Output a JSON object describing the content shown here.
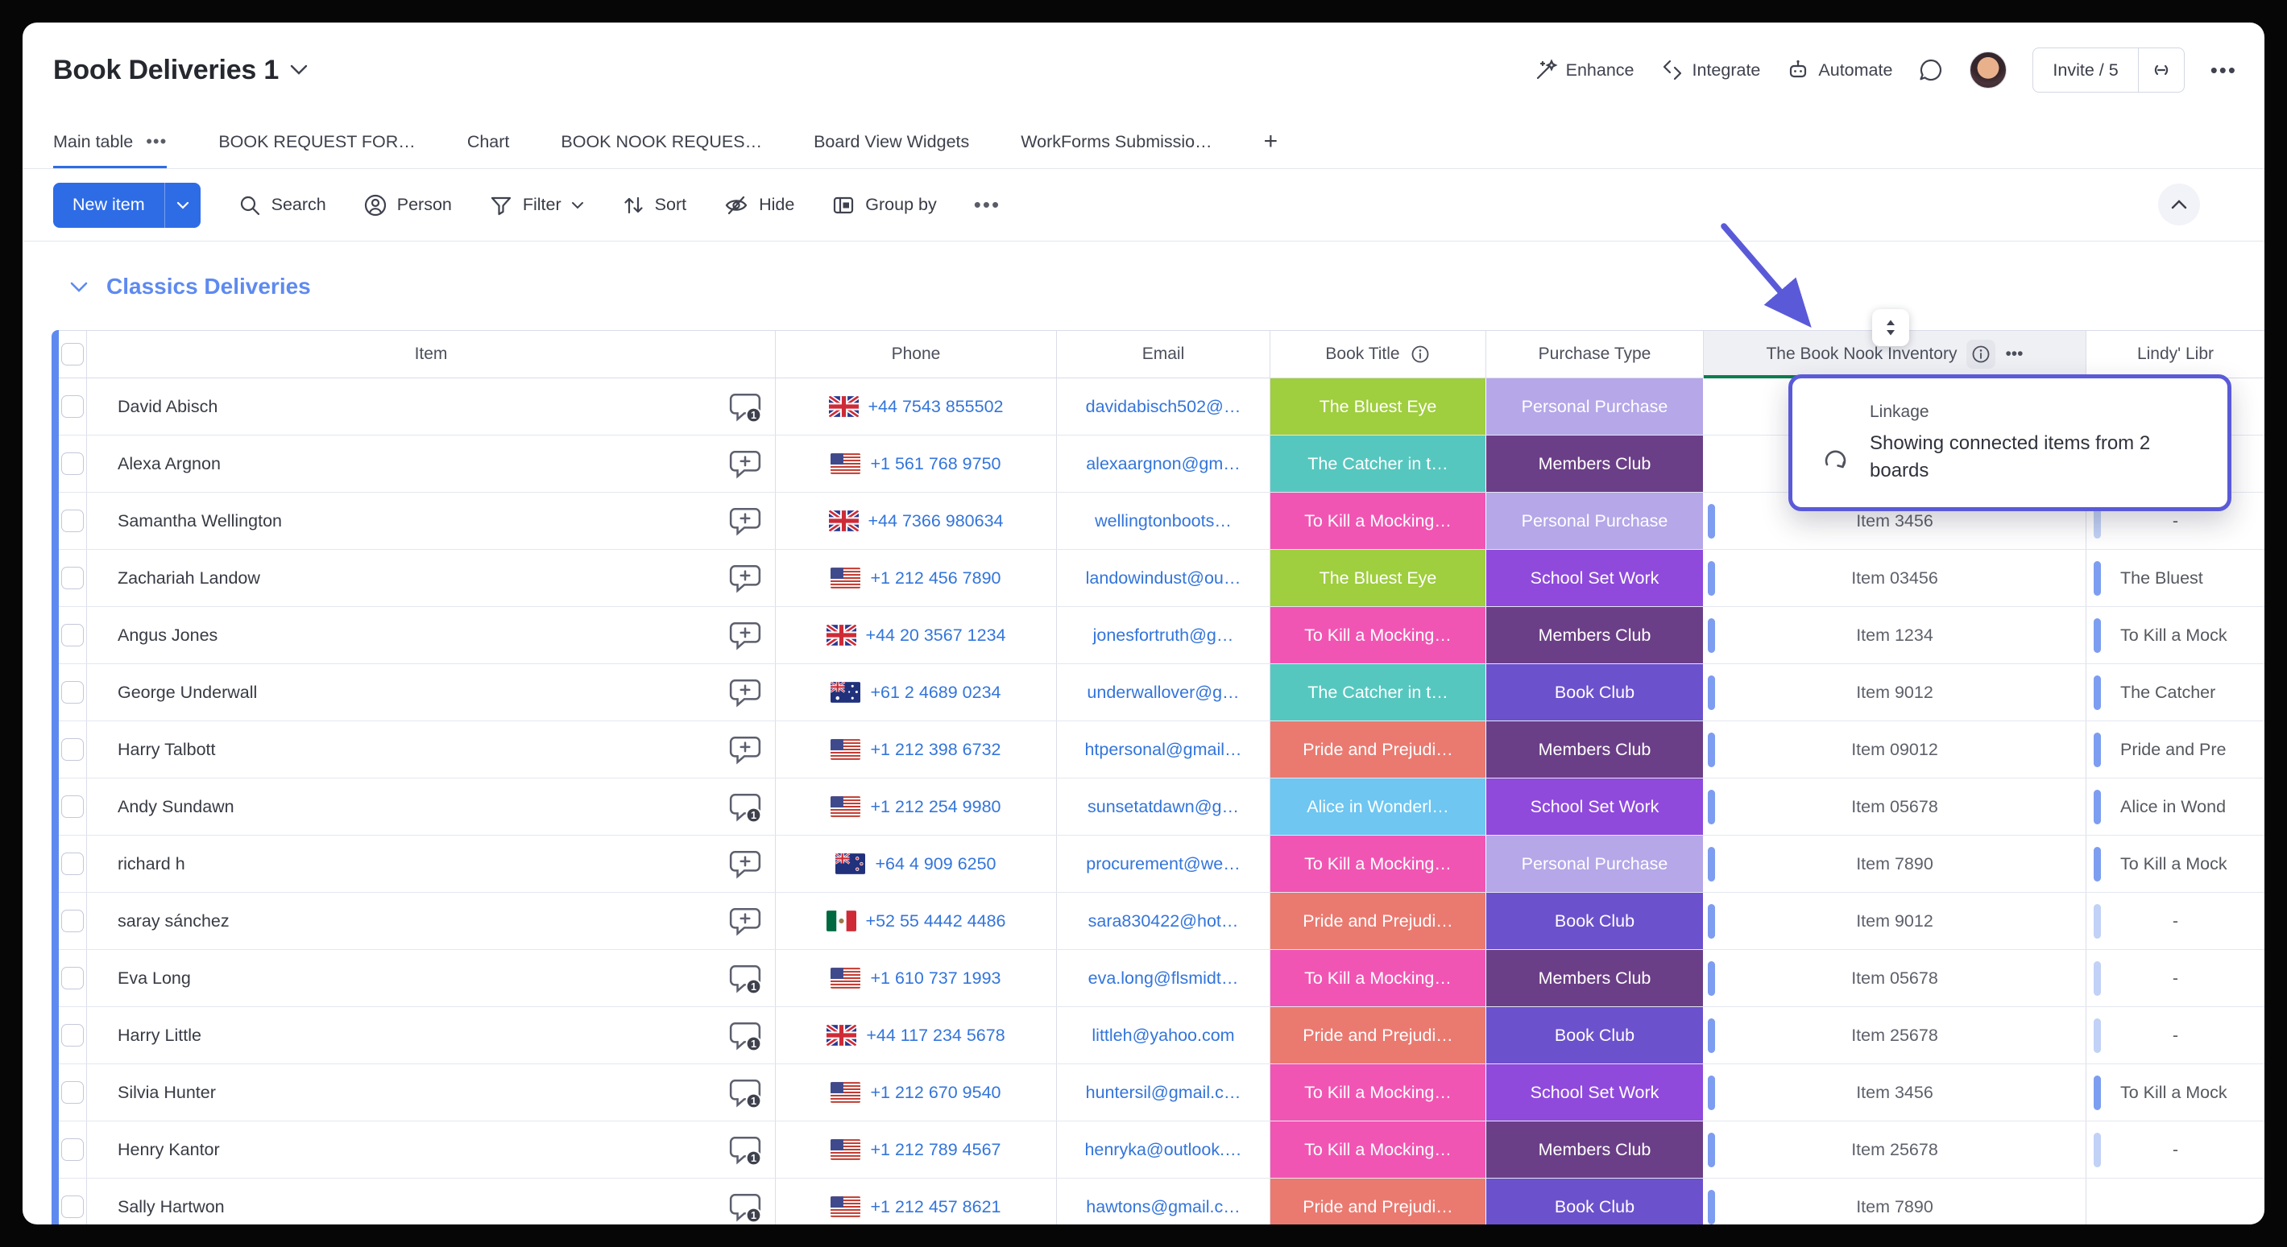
{
  "app": {
    "title": "Book Deliveries 1"
  },
  "top_actions": {
    "enhance": "Enhance",
    "integrate": "Integrate",
    "automate": "Automate",
    "invite": "Invite / 5"
  },
  "tabs": {
    "items": [
      "Main table",
      "BOOK REQUEST FOR…",
      "Chart",
      "BOOK NOOK REQUES…",
      "Board View Widgets",
      "WorkForms Submissio…"
    ],
    "add": "+",
    "active": "Main table"
  },
  "toolbar": {
    "new_item": "New item",
    "search": "Search",
    "person": "Person",
    "filter": "Filter",
    "sort": "Sort",
    "hide": "Hide",
    "group_by": "Group by"
  },
  "group": {
    "title": "Classics Deliveries"
  },
  "table": {
    "columns": {
      "item": "Item",
      "phone": "Phone",
      "email": "Email",
      "book_title": "Book Title",
      "purchase_type": "Purchase Type",
      "inventory": "The Book Nook Inventory",
      "linked": "Lindy' Libr"
    },
    "rows": [
      {
        "name": "David Abisch",
        "chat": "badge",
        "chat_count": "1",
        "flag": "gb",
        "phone": "+44 7543 855502",
        "email": "davidabisch502@…",
        "book": "The Bluest Eye",
        "book_color": "green",
        "purchase": "Personal Purchase",
        "purchase_color": "lavender",
        "inventory": "",
        "linked": ""
      },
      {
        "name": "Alexa Argnon",
        "chat": "add",
        "chat_count": "",
        "flag": "us",
        "phone": "+1 561 768 9750",
        "email": "alexaargnon@gm…",
        "book": "The Catcher in t…",
        "book_color": "teal",
        "purchase": "Members Club",
        "purchase_color": "plum",
        "inventory": "",
        "linked": ""
      },
      {
        "name": "Samantha Wellington",
        "chat": "add",
        "chat_count": "",
        "flag": "gb",
        "phone": "+44 7366 980634",
        "email": "wellingtonboots…",
        "book": "To Kill a Mocking…",
        "book_color": "pink",
        "purchase": "Personal Purchase",
        "purchase_color": "lavender",
        "inventory": "Item 3456",
        "linked": "-"
      },
      {
        "name": "Zachariah Landow",
        "chat": "add",
        "chat_count": "",
        "flag": "us",
        "phone": "+1 212 456 7890",
        "email": "landowindust@ou…",
        "book": "The Bluest Eye",
        "book_color": "green",
        "purchase": "School Set Work",
        "purchase_color": "violet",
        "inventory": "Item 03456",
        "linked": "The Bluest"
      },
      {
        "name": "Angus Jones",
        "chat": "add",
        "chat_count": "",
        "flag": "gb",
        "phone": "+44 20 3567 1234",
        "email": "jonesfortruth@g…",
        "book": "To Kill a Mocking…",
        "book_color": "pink",
        "purchase": "Members Club",
        "purchase_color": "plum",
        "inventory": "Item 1234",
        "linked": "To Kill a Mock"
      },
      {
        "name": "George Underwall",
        "chat": "add",
        "chat_count": "",
        "flag": "au",
        "phone": "+61 2 4689 0234",
        "email": "underwallover@g…",
        "book": "The Catcher in t…",
        "book_color": "teal",
        "purchase": "Book Club",
        "purchase_color": "royal",
        "inventory": "Item 9012",
        "linked": "The Catcher"
      },
      {
        "name": "Harry Talbott",
        "chat": "add",
        "chat_count": "",
        "flag": "us",
        "phone": "+1 212 398 6732",
        "email": "htpersonal@gmail…",
        "book": "Pride and Prejudi…",
        "book_color": "salmon",
        "purchase": "Members Club",
        "purchase_color": "plum",
        "inventory": "Item 09012",
        "linked": "Pride and Pre"
      },
      {
        "name": "Andy Sundawn",
        "chat": "badge",
        "chat_count": "1",
        "flag": "us",
        "phone": "+1 212 254 9980",
        "email": "sunsetatdawn@g…",
        "book": "Alice in Wonderl…",
        "book_color": "sky",
        "purchase": "School Set Work",
        "purchase_color": "violet",
        "inventory": "Item 05678",
        "linked": "Alice in Wond"
      },
      {
        "name": "richard h",
        "chat": "add",
        "chat_count": "",
        "flag": "nz",
        "phone": "+64 4 909 6250",
        "email": "procurement@we…",
        "book": "To Kill a Mocking…",
        "book_color": "pink",
        "purchase": "Personal Purchase",
        "purchase_color": "lavender",
        "inventory": "Item 7890",
        "linked": "To Kill a Mock"
      },
      {
        "name": "saray sánchez",
        "chat": "add",
        "chat_count": "",
        "flag": "mx",
        "phone": "+52 55 4442 4486",
        "email": "sara830422@hot…",
        "book": "Pride and Prejudi…",
        "book_color": "salmon",
        "purchase": "Book Club",
        "purchase_color": "royal",
        "inventory": "Item 9012",
        "linked": "-"
      },
      {
        "name": "Eva Long",
        "chat": "badge",
        "chat_count": "1",
        "flag": "us",
        "phone": "+1 610 737 1993",
        "email": "eva.long@flsmidt…",
        "book": "To Kill a Mocking…",
        "book_color": "pink",
        "purchase": "Members Club",
        "purchase_color": "plum",
        "inventory": "Item 05678",
        "linked": "-"
      },
      {
        "name": "Harry Little",
        "chat": "badge",
        "chat_count": "1",
        "flag": "gb",
        "phone": "+44 117 234 5678",
        "email": "littleh@yahoo.com",
        "book": "Pride and Prejudi…",
        "book_color": "salmon",
        "purchase": "Book Club",
        "purchase_color": "royal",
        "inventory": "Item 25678",
        "linked": "-"
      },
      {
        "name": "Silvia Hunter",
        "chat": "badge",
        "chat_count": "1",
        "flag": "us",
        "phone": "+1 212 670 9540",
        "email": "huntersil@gmail.c…",
        "book": "To Kill a Mocking…",
        "book_color": "pink",
        "purchase": "School Set Work",
        "purchase_color": "violet",
        "inventory": "Item 3456",
        "linked": "To Kill a Mock"
      },
      {
        "name": "Henry Kantor",
        "chat": "badge",
        "chat_count": "1",
        "flag": "us",
        "phone": "+1 212 789 4567",
        "email": "henryka@outlook.…",
        "book": "To Kill a Mocking…",
        "book_color": "pink",
        "purchase": "Members Club",
        "purchase_color": "plum",
        "inventory": "Item 25678",
        "linked": "-"
      },
      {
        "name": "Sally Hartwon",
        "chat": "badge",
        "chat_count": "1",
        "flag": "us",
        "phone": "+1 212 457 8621",
        "email": "hawtons@gmail.c…",
        "book": "Pride and Prejudi…",
        "book_color": "salmon",
        "purchase": "Book Club",
        "purchase_color": "royal",
        "inventory": "Item 7890",
        "linked": ""
      }
    ]
  },
  "tooltip": {
    "title": "Linkage",
    "line1": "Showing connected items from 2",
    "line2": "boards"
  },
  "palette": {
    "green": "#9fce3e",
    "teal": "#56c7bf",
    "pink": "#f155b3",
    "salmon": "#ea7a70",
    "sky": "#6ec6f1",
    "lavender": "#b5a7e8",
    "plum": "#6b3f87",
    "violet": "#8f4adb",
    "royal": "#6c51cc",
    "link_blue": "#3375db",
    "primary_blue": "#2e6ce6",
    "group_blue": "#5e8af0",
    "annotation": "#5a5ad9",
    "connect_green": "#0b7d4e"
  }
}
